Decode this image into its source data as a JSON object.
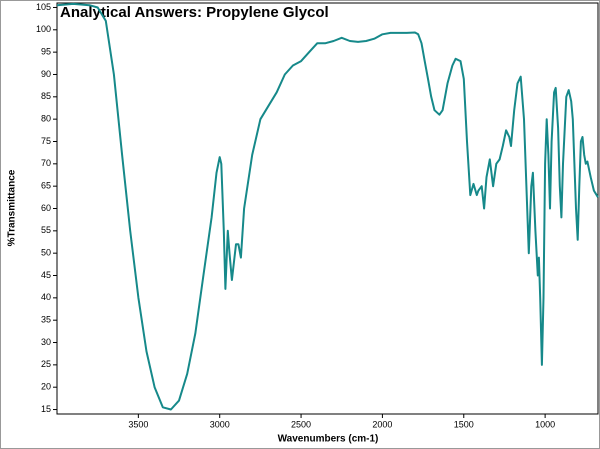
{
  "chart_data": {
    "type": "line",
    "title": "Analytical Answers: Propylene Glycol",
    "x_label": "Wavenumbers (cm-1)",
    "y_label": "%Transmittance",
    "xlim": [
      4000,
      675
    ],
    "ylim": [
      14,
      106
    ],
    "x_reversed": true,
    "xticks": [
      3500,
      3000,
      2500,
      2000,
      1500,
      1000
    ],
    "yticks": [
      15,
      20,
      25,
      30,
      35,
      40,
      45,
      50,
      55,
      60,
      65,
      70,
      75,
      80,
      85,
      90,
      95,
      100,
      105
    ],
    "x": [
      4000,
      3900,
      3800,
      3750,
      3700,
      3650,
      3600,
      3550,
      3500,
      3450,
      3400,
      3350,
      3300,
      3250,
      3200,
      3150,
      3100,
      3050,
      3020,
      3000,
      2990,
      2975,
      2965,
      2950,
      2940,
      2925,
      2900,
      2885,
      2870,
      2850,
      2800,
      2750,
      2700,
      2650,
      2600,
      2550,
      2500,
      2450,
      2400,
      2350,
      2300,
      2250,
      2200,
      2150,
      2100,
      2050,
      2000,
      1950,
      1900,
      1850,
      1800,
      1780,
      1760,
      1740,
      1720,
      1700,
      1680,
      1650,
      1630,
      1600,
      1570,
      1550,
      1520,
      1500,
      1480,
      1460,
      1440,
      1420,
      1410,
      1390,
      1375,
      1360,
      1340,
      1320,
      1300,
      1280,
      1260,
      1240,
      1220,
      1210,
      1190,
      1170,
      1150,
      1130,
      1110,
      1100,
      1085,
      1075,
      1060,
      1045,
      1038,
      1030,
      1020,
      1010,
      1000,
      990,
      980,
      970,
      960,
      945,
      935,
      920,
      910,
      900,
      890,
      870,
      855,
      840,
      830,
      820,
      810,
      800,
      790,
      780,
      770,
      760,
      750,
      740,
      720,
      700,
      675
    ],
    "series": [
      {
        "name": "Propylene Glycol",
        "color": "#16898a",
        "values": [
          105.5,
          105.8,
          105.5,
          105,
          102,
          90,
          72,
          55,
          40,
          28,
          20,
          15.5,
          15,
          17,
          23,
          32,
          45,
          58,
          68,
          71.5,
          70,
          55,
          42,
          55,
          50,
          44,
          52,
          52,
          49,
          60,
          72,
          80,
          83,
          86,
          90,
          92,
          93,
          95,
          97,
          97,
          97.5,
          98.2,
          97.5,
          97.3,
          97.5,
          98,
          99,
          99.3,
          99.3,
          99.3,
          99.4,
          99,
          97,
          93,
          89,
          85,
          82,
          81,
          82,
          88,
          92,
          93.5,
          93,
          89,
          75,
          63,
          65.5,
          63,
          64,
          65,
          60,
          67,
          71,
          65,
          70,
          71,
          74,
          77.5,
          76,
          74,
          82,
          88,
          89.5,
          80,
          60,
          50,
          65,
          68,
          55,
          45,
          49,
          40,
          25,
          40,
          70,
          80,
          72,
          60,
          75,
          86,
          87,
          78,
          65,
          58,
          70,
          85,
          86.5,
          84,
          80,
          70,
          60,
          53,
          65,
          75,
          76,
          72,
          70,
          70.5,
          67,
          64,
          62.5
        ]
      }
    ]
  }
}
